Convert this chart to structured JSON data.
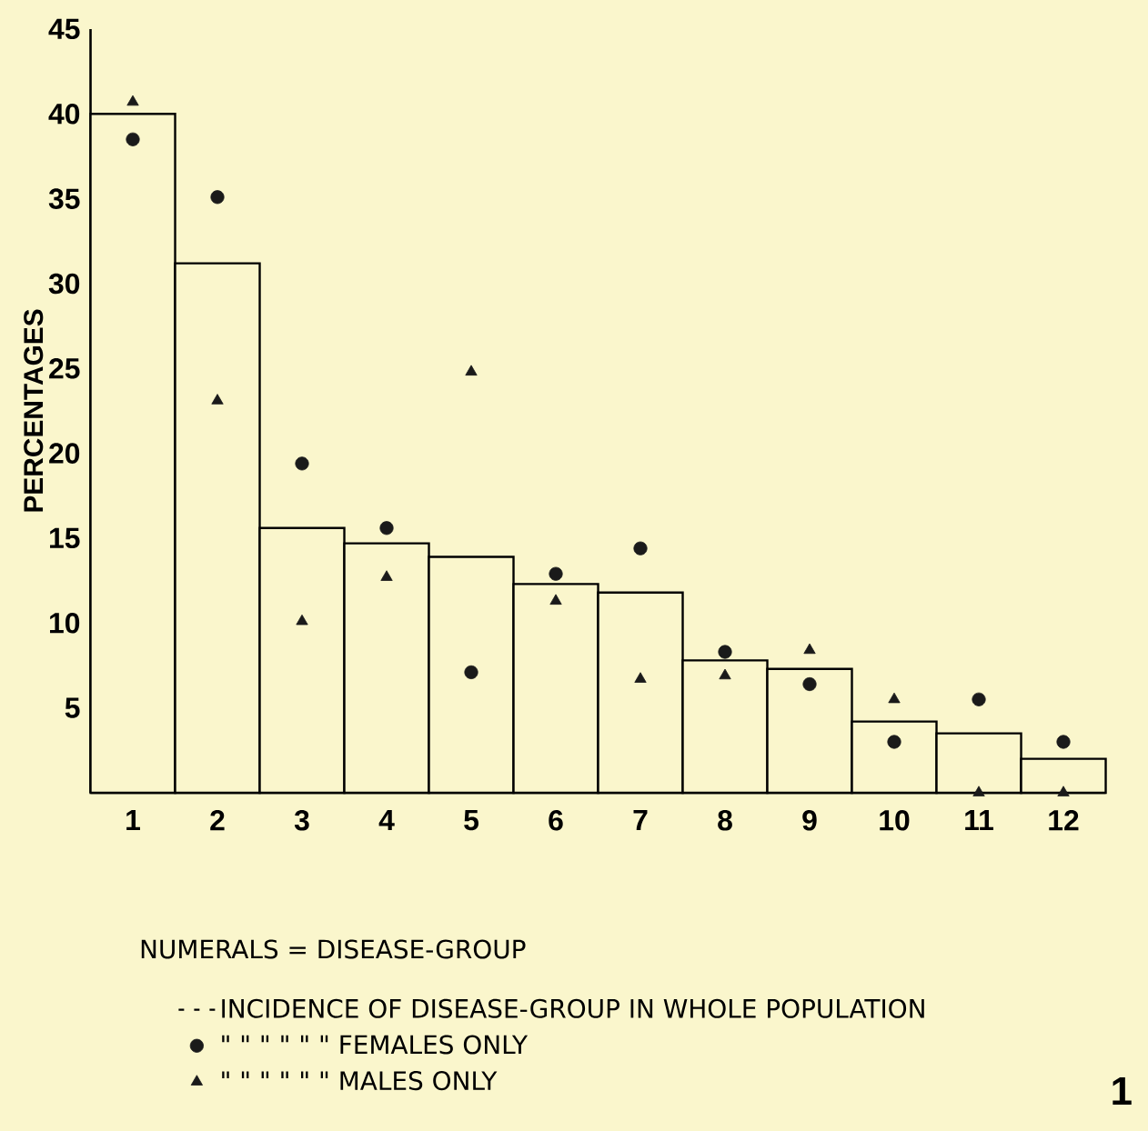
{
  "chart_data": {
    "type": "bar",
    "ylabel": "PERCENTAGES",
    "categories": [
      "1",
      "2",
      "3",
      "4",
      "5",
      "6",
      "7",
      "8",
      "9",
      "10",
      "11",
      "12"
    ],
    "series": [
      {
        "name": "INCIDENCE OF DISEASE-GROUP IN WHOLE POPULATION",
        "color": "#faf6cc",
        "values": [
          40,
          31.2,
          15.6,
          14.7,
          13.9,
          12.3,
          11.8,
          7.8,
          7.3,
          4.2,
          3.5,
          2.0
        ]
      },
      {
        "name": "\" \" \" \" \" \" FEMALES ONLY",
        "type": "scatter",
        "marker": "circle",
        "color": "#1a1a1a",
        "values": [
          38.5,
          35.1,
          19.4,
          15.6,
          7.1,
          12.9,
          14.4,
          8.3,
          6.4,
          3.0,
          5.5,
          3.0
        ]
      },
      {
        "name": "\" \" \" \" \" \" MALES ONLY",
        "type": "scatter",
        "marker": "triangle",
        "color": "#1a1a1a",
        "values": [
          40.7,
          23.1,
          10.1,
          12.7,
          24.8,
          11.3,
          6.7,
          6.9,
          8.4,
          5.5,
          0,
          0
        ]
      }
    ],
    "ylim": [
      0,
      45
    ],
    "yticks": [
      5,
      10,
      15,
      20,
      25,
      30,
      35,
      40,
      45
    ],
    "legend": "bottom",
    "annotations": [
      "NUMERALS = DISEASE-GROUP",
      "1"
    ]
  }
}
